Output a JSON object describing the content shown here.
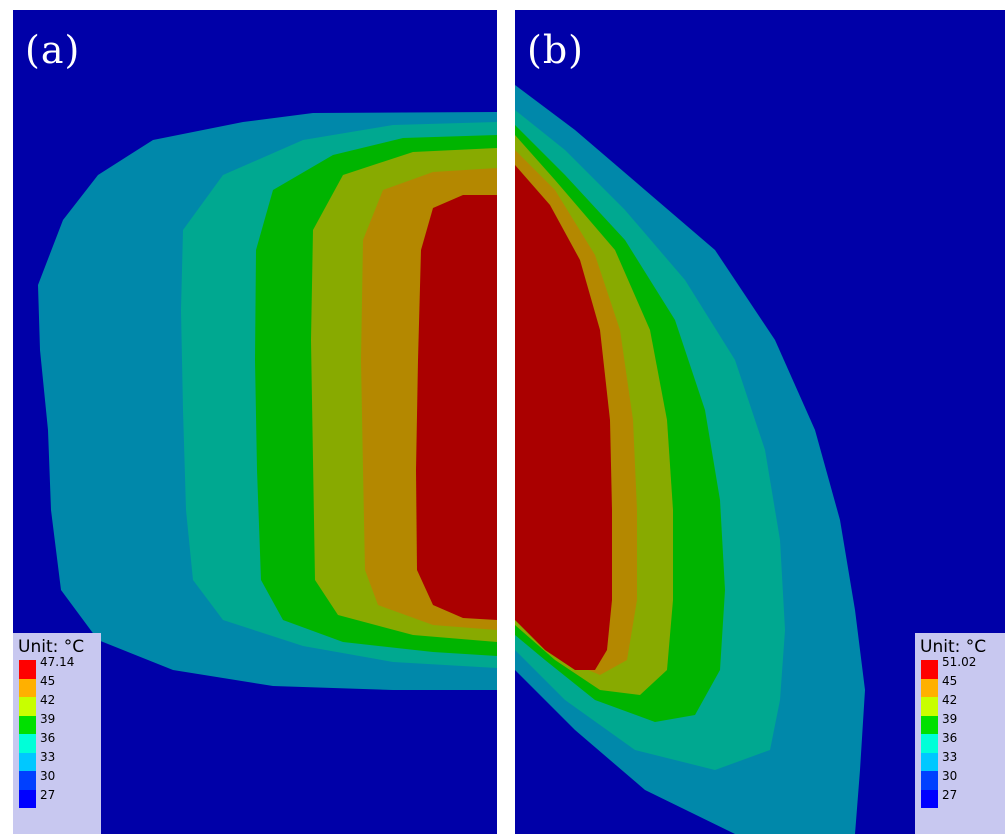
{
  "panels": [
    {
      "id": "a",
      "label": "(a)",
      "legend": {
        "unit_label": "Unit: °C",
        "ticks": [
          "47.14",
          "45",
          "42",
          "39",
          "36",
          "33",
          "30",
          "27"
        ],
        "colors": [
          "#ff0000",
          "#ffb000",
          "#c8ff00",
          "#00e000",
          "#00ffd8",
          "#00c8ff",
          "#0040ff",
          "#0000ff"
        ]
      }
    },
    {
      "id": "b",
      "label": "(b)",
      "legend": {
        "unit_label": "Unit: °C",
        "ticks": [
          "51.02",
          "45",
          "42",
          "39",
          "36",
          "33",
          "30",
          "27"
        ],
        "colors": [
          "#ff0000",
          "#ffb000",
          "#c8ff00",
          "#00e000",
          "#00ffd8",
          "#00c8ff",
          "#0040ff",
          "#0000ff"
        ]
      }
    }
  ],
  "contour_colors": {
    "background": "#0000a8",
    "band_30": "#0088aa",
    "band_33": "#00a890",
    "band_36": "#00b400",
    "band_39": "#88aa00",
    "band_42": "#b48800",
    "band_45": "#aa0000"
  }
}
